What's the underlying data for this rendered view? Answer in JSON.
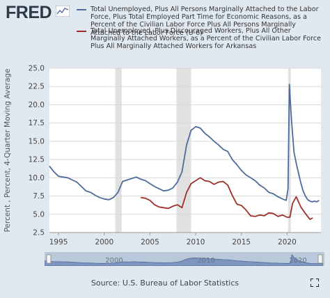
{
  "brand": {
    "name": "FRED"
  },
  "chart_data": {
    "type": "line",
    "ylabel": "Percent , Percent, 4-Quarter Moving Average",
    "xlabel": "",
    "ylim": [
      2.5,
      25.0
    ],
    "xlim": [
      1994.0,
      2023.7
    ],
    "yticks": [
      2.5,
      5.0,
      7.5,
      10.0,
      12.5,
      15.0,
      17.5,
      20.0,
      22.5,
      25.0
    ],
    "ytick_labels": [
      "2.5",
      "5.0",
      "7.5",
      "10.0",
      "12.5",
      "15.0",
      "17.5",
      "20.0",
      "22.5",
      "25.0"
    ],
    "xticks": [
      1995,
      2000,
      2005,
      2010,
      2015,
      2020
    ],
    "xtick_labels": [
      "1995",
      "2000",
      "2005",
      "2010",
      "2015",
      "2020"
    ],
    "grid": true,
    "legend_position": "top",
    "recessions": [
      [
        2001.2,
        2001.9
      ],
      [
        2007.9,
        2009.5
      ],
      [
        2020.1,
        2020.4
      ]
    ],
    "series": [
      {
        "name": "Total Unemployed, Plus All Persons Marginally Attached to the Labor Force, Plus Total Employed Part Time for Economic Reasons, as a Percent of the Civilian Labor Force Plus All Persons Marginally Attached to the Labor Force (U-6)",
        "color": "#4e6a9c",
        "x": [
          1994.0,
          1994.5,
          1995.0,
          1995.5,
          1996.0,
          1996.5,
          1997.0,
          1997.5,
          1998.0,
          1998.5,
          1999.0,
          1999.5,
          2000.0,
          2000.5,
          2001.0,
          2001.5,
          2002.0,
          2002.5,
          2003.0,
          2003.5,
          2004.0,
          2004.5,
          2005.0,
          2005.5,
          2006.0,
          2006.5,
          2007.0,
          2007.5,
          2008.0,
          2008.5,
          2009.0,
          2009.5,
          2010.0,
          2010.5,
          2011.0,
          2011.5,
          2012.0,
          2012.5,
          2013.0,
          2013.5,
          2014.0,
          2014.5,
          2015.0,
          2015.5,
          2016.0,
          2016.5,
          2017.0,
          2017.5,
          2018.0,
          2018.5,
          2019.0,
          2019.5,
          2019.9,
          2020.1,
          2020.25,
          2020.35,
          2020.5,
          2020.75,
          2021.0,
          2021.25,
          2021.5,
          2021.75,
          2022.0,
          2022.25,
          2022.5,
          2022.75,
          2023.0,
          2023.25,
          2023.5
        ],
        "values": [
          11.6,
          10.8,
          10.2,
          10.1,
          10.0,
          9.7,
          9.4,
          8.8,
          8.2,
          8.0,
          7.6,
          7.3,
          7.1,
          7.0,
          7.3,
          8.0,
          9.5,
          9.7,
          9.9,
          10.1,
          9.8,
          9.6,
          9.2,
          8.8,
          8.5,
          8.2,
          8.3,
          8.6,
          9.4,
          10.8,
          14.5,
          16.5,
          17.0,
          16.8,
          16.1,
          15.6,
          15.0,
          14.5,
          13.9,
          13.6,
          12.5,
          11.8,
          11.0,
          10.4,
          10.0,
          9.6,
          9.0,
          8.6,
          8.0,
          7.8,
          7.4,
          7.1,
          6.9,
          8.5,
          22.8,
          20.5,
          17.5,
          13.5,
          12.0,
          10.6,
          9.3,
          8.2,
          7.5,
          7.0,
          6.8,
          6.7,
          6.8,
          6.7,
          6.9
        ]
      },
      {
        "name": "Total Unemployed, Plus Discouraged Workers, Plus All Other Marginally Attached Workers, as a Percent of the Civilian Labor Force Plus All Marginally Attached Workers for Arkansas",
        "color": "#9c2f2a",
        "x": [
          2004.0,
          2004.5,
          2005.0,
          2005.5,
          2006.0,
          2006.5,
          2007.0,
          2007.5,
          2008.0,
          2008.5,
          2009.0,
          2009.5,
          2010.0,
          2010.5,
          2011.0,
          2011.5,
          2012.0,
          2012.5,
          2013.0,
          2013.5,
          2014.0,
          2014.5,
          2015.0,
          2015.5,
          2016.0,
          2016.5,
          2017.0,
          2017.5,
          2018.0,
          2018.5,
          2019.0,
          2019.5,
          2020.0,
          2020.3,
          2020.6,
          2021.0,
          2021.5,
          2022.0,
          2022.5,
          2022.8
        ],
        "values": [
          7.3,
          7.2,
          6.9,
          6.3,
          6.0,
          5.9,
          5.8,
          6.1,
          6.3,
          5.9,
          8.0,
          9.2,
          9.6,
          10.0,
          9.6,
          9.5,
          9.1,
          9.4,
          9.5,
          9.0,
          7.6,
          6.4,
          6.2,
          5.6,
          4.8,
          4.7,
          4.9,
          4.8,
          5.2,
          5.1,
          4.7,
          4.9,
          4.6,
          4.6,
          6.5,
          7.4,
          6.0,
          5.1,
          4.3,
          4.5
        ]
      }
    ]
  },
  "navigator": {
    "labels": [
      "2000",
      "2010",
      "2020"
    ]
  },
  "footer": {
    "source": "Source: U.S. Bureau of Labor Statistics"
  }
}
